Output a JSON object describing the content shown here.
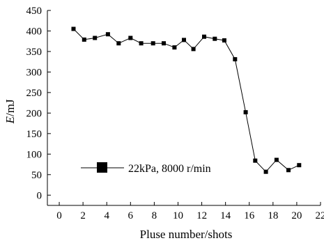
{
  "chart_data": {
    "type": "line",
    "title": "",
    "ylabel_italic": "E",
    "ylabel_unit": "/mJ",
    "xlabel": "Pluse number/shots",
    "xlim": [
      -1,
      22
    ],
    "ylim": [
      -25,
      450
    ],
    "xticks": [
      0,
      2,
      4,
      6,
      8,
      10,
      12,
      14,
      16,
      18,
      20,
      22
    ],
    "yticks": [
      0,
      50,
      100,
      150,
      200,
      250,
      300,
      350,
      400,
      450
    ],
    "legend_position": "lower-left",
    "series": [
      {
        "name": "22kPa, 8000 r/min",
        "marker": "square",
        "x": [
          1.2,
          2.1,
          3.0,
          4.1,
          5.0,
          6.0,
          6.9,
          7.9,
          8.8,
          9.7,
          10.5,
          11.3,
          12.2,
          13.1,
          13.9,
          14.8,
          15.7,
          16.5,
          17.4,
          18.3,
          19.3,
          20.2
        ],
        "y": [
          405,
          379,
          383,
          392,
          370,
          383,
          370,
          370,
          370,
          360,
          378,
          356,
          386,
          381,
          377,
          331,
          202,
          84,
          57,
          86,
          61,
          73
        ]
      }
    ]
  }
}
